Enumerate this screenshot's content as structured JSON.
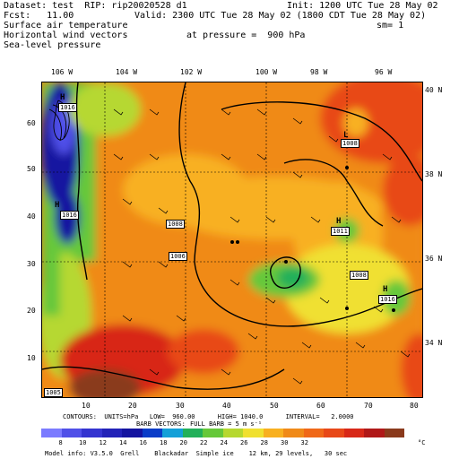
{
  "header": {
    "dataset": "Dataset: test  RIP: rip20020528 d1",
    "init": "Init: 1200 UTC Tue 28 May 02",
    "fcst": "Fcst:   11.00",
    "valid": "Valid: 2300 UTC Tue 28 May 02 (1800 CDT Tue 28 May 02)",
    "line3": "Surface air temperature",
    "sm": "sm= 1",
    "line4": "Horizontal wind vectors",
    "pressure": "at pressure =  900 hPa",
    "line5": "Sea-level pressure"
  },
  "axes": {
    "top_lon": [
      "106 W",
      "104 W",
      "102 W",
      "100 W",
      "98 W",
      "96 W"
    ],
    "right_lat": [
      "40 N",
      "38 N",
      "36 N",
      "34 N"
    ],
    "left_grid": [
      "60",
      "50",
      "40",
      "30",
      "20",
      "10"
    ],
    "bottom_grid": [
      "10",
      "20",
      "30",
      "40",
      "50",
      "60",
      "70",
      "80"
    ]
  },
  "map_labels": {
    "h1": "H",
    "h1_val": "1016",
    "h2": "H",
    "h2_val": "1016",
    "h3": "H",
    "h3_val": "1011",
    "h4": "H",
    "h4_val": "1016",
    "l1": "L",
    "l1_val": "1008",
    "c1": "1008",
    "c2": "1006",
    "c3": "1008",
    "c4": "1005"
  },
  "footer": {
    "contours": "CONTOURS:  UNITS=hPa   LOW=  960.00      HIGH= 1040.0      INTERVAL=   2.0000",
    "barb1": "BARB VECTORS:",
    "barb2": "FULL BARB = 5 m s⁻¹",
    "colorbar_labels": [
      "8",
      "10",
      "12",
      "14",
      "16",
      "18",
      "20",
      "22",
      "24",
      "26",
      "28",
      "30",
      "32"
    ],
    "unit": "°C",
    "model_info": "Model info: V3.5.0  Grell    Blackadar  Simple ice    12 km, 29 levels,   30 sec"
  },
  "colors": {
    "bar": [
      "#7b7bff",
      "#5050e8",
      "#3434d0",
      "#2222b8",
      "#1414a0",
      "#0a3cc8",
      "#14a0d8",
      "#22b05a",
      "#66c83a",
      "#b6d830",
      "#f0e030",
      "#f8b020",
      "#f08a18",
      "#f06818",
      "#e84818",
      "#d82818",
      "#b01818",
      "#8a3a1c"
    ]
  }
}
